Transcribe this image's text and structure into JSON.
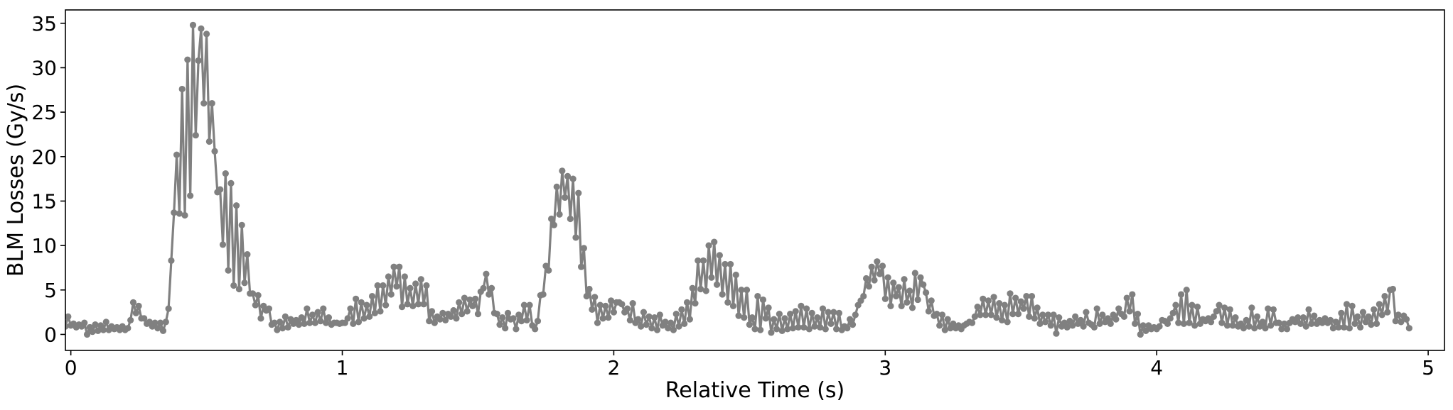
{
  "chart_data": {
    "type": "line",
    "title": "",
    "xlabel": "Relative Time (s)",
    "ylabel": "BLM Losses (Gy/s)",
    "xlim": [
      -0.02,
      5.06
    ],
    "ylim": [
      -1.8,
      36.5
    ],
    "x_ticks": [
      0,
      1,
      2,
      3,
      4,
      5
    ],
    "y_ticks": [
      0,
      5,
      10,
      15,
      20,
      25,
      30,
      35
    ],
    "grid": false,
    "legend": "none",
    "series": [
      {
        "color": "#808080",
        "marker": "circle",
        "x_start": -0.02,
        "x_step": 0.01,
        "y": [
          0.9,
          2.0,
          1.0,
          1.2,
          0.8,
          1.1,
          0.9,
          1.3,
          0.0,
          0.8,
          0.3,
          1.1,
          0.4,
          1.0,
          0.5,
          1.4,
          0.5,
          0.9,
          0.6,
          0.8,
          0.5,
          0.9,
          0.5,
          0.7,
          1.6,
          3.6,
          2.4,
          3.2,
          1.8,
          1.8,
          1.2,
          1.4,
          0.9,
          1.3,
          0.7,
          1.3,
          0.4,
          1.4,
          2.9,
          8.3,
          13.7,
          20.2,
          13.6,
          27.6,
          13.4,
          30.9,
          15.6,
          34.8,
          22.4,
          30.8,
          34.4,
          26.0,
          33.8,
          21.7,
          26.0,
          20.6,
          16.0,
          16.3,
          10.1,
          18.1,
          7.2,
          17.0,
          5.5,
          14.5,
          5.1,
          12.3,
          5.8,
          9.0,
          4.6,
          4.6,
          3.3,
          4.4,
          1.8,
          3.2,
          2.7,
          2.9,
          1.1,
          1.3,
          0.5,
          1.4,
          0.7,
          2.0,
          0.8,
          1.7,
          1.2,
          1.6,
          1.1,
          1.9,
          1.2,
          2.9,
          1.3,
          2.2,
          1.3,
          2.5,
          1.5,
          2.9,
          1.3,
          1.9,
          1.1,
          1.3,
          1.3,
          1.2,
          1.3,
          1.3,
          1.8,
          2.9,
          1.2,
          4.0,
          1.4,
          3.6,
          1.8,
          3.3,
          2.0,
          4.3,
          2.4,
          5.5,
          2.6,
          5.5,
          3.3,
          6.5,
          4.5,
          7.6,
          5.4,
          7.6,
          3.1,
          6.5,
          3.4,
          5.2,
          3.2,
          5.7,
          3.4,
          6.2,
          3.4,
          5.5,
          1.5,
          2.6,
          1.3,
          2.0,
          1.7,
          2.4,
          1.6,
          2.3,
          2.0,
          2.7,
          1.8,
          3.6,
          2.3,
          4.1,
          2.6,
          3.9,
          3.2,
          4.0,
          2.3,
          4.8,
          5.2,
          6.8,
          4.5,
          5.2,
          2.4,
          2.3,
          1.1,
          1.9,
          0.7,
          2.4,
          1.7,
          1.8,
          0.6,
          2.2,
          1.5,
          3.3,
          1.6,
          3.3,
          1.0,
          0.6,
          1.5,
          4.4,
          4.5,
          7.7,
          7.2,
          13.0,
          12.3,
          16.6,
          13.5,
          18.4,
          15.4,
          17.8,
          13.0,
          17.5,
          10.9,
          15.9,
          7.6,
          9.7,
          4.3,
          5.1,
          2.8,
          4.2,
          1.3,
          3.3,
          1.8,
          3.2,
          1.9,
          3.8,
          2.5,
          3.6,
          3.6,
          3.4,
          2.5,
          2.9,
          1.6,
          3.5,
          1.3,
          1.7,
          0.9,
          2.5,
          1.1,
          2.0,
          0.7,
          1.9,
          0.5,
          2.2,
          1.0,
          1.4,
          0.7,
          1.3,
          0.5,
          2.3,
          0.9,
          2.8,
          1.2,
          3.6,
          1.7,
          5.2,
          3.5,
          8.3,
          5.1,
          8.3,
          4.9,
          10.0,
          6.4,
          10.4,
          5.6,
          8.9,
          4.5,
          7.9,
          3.6,
          7.9,
          3.2,
          6.7,
          2.1,
          5.0,
          1.9,
          5.0,
          1.1,
          1.9,
          0.6,
          4.3,
          0.5,
          3.9,
          1.8,
          3.0,
          0.2,
          1.7,
          0.6,
          2.3,
          0.4,
          1.8,
          0.6,
          2.3,
          0.7,
          2.6,
          0.8,
          3.2,
          0.8,
          2.9,
          0.6,
          2.4,
          0.9,
          1.9,
          0.8,
          2.9,
          0.6,
          2.5,
          1.2,
          2.5,
          0.6,
          2.4,
          0.5,
          0.9,
          0.7,
          1.7,
          1.1,
          2.2,
          3.3,
          3.8,
          4.3,
          6.3,
          5.4,
          7.6,
          6.1,
          8.2,
          6.8,
          7.7,
          4.0,
          6.4,
          3.2,
          5.8,
          4.3,
          5.3,
          3.2,
          6.2,
          3.6,
          4.9,
          3.0,
          6.9,
          3.9,
          6.4,
          5.6,
          4.7,
          2.6,
          3.8,
          2.1,
          2.3,
          1.0,
          2.2,
          0.5,
          1.7,
          0.7,
          1.2,
          0.7,
          1.0,
          0.6,
          1.0,
          1.2,
          1.4,
          1.3,
          2.0,
          3.1,
          2.2,
          4.0,
          2.2,
          3.8,
          2.2,
          4.2,
          1.9,
          3.5,
          1.6,
          3.3,
          1.4,
          4.6,
          2.3,
          4.1,
          2.3,
          3.7,
          2.9,
          4.3,
          2.0,
          4.3,
          1.8,
          3.0,
          1.2,
          2.2,
          1.4,
          2.2,
          1.0,
          2.2,
          0.1,
          1.9,
          0.9,
          1.3,
          0.8,
          1.5,
          1.0,
          2.0,
          1.2,
          1.6,
          0.9,
          2.5,
          1.3,
          1.1,
          0.8,
          2.9,
          1.2,
          2.2,
          1.4,
          1.8,
          1.2,
          2.2,
          1.7,
          2.9,
          2.3,
          2.0,
          4.1,
          2.6,
          4.5,
          1.2,
          2.3,
          0.0,
          1.0,
          0.4,
          1.0,
          0.6,
          0.8,
          0.6,
          0.9,
          1.6,
          1.5,
          1.2,
          1.8,
          2.4,
          3.3,
          1.3,
          4.5,
          1.2,
          5.0,
          1.3,
          3.3,
          1.0,
          3.1,
          1.2,
          1.7,
          1.5,
          1.8,
          1.4,
          2.0,
          2.6,
          3.3,
          1.3,
          3.0,
          1.0,
          2.8,
          1.0,
          1.9,
          0.9,
          1.2,
          0.7,
          1.6,
          0.9,
          3.0,
          0.7,
          2.0,
          0.9,
          1.4,
          0.7,
          2.9,
          1.0,
          2.8,
          1.3,
          1.3,
          0.6,
          1.2,
          0.6,
          1.3,
          1.7,
          1.4,
          1.9,
          1.2,
          1.9,
          0.9,
          2.8,
          1.2,
          2.1,
          1.2,
          1.6,
          1.3,
          1.8,
          1.3,
          1.6,
          0.7,
          1.4,
          0.8,
          2.4,
          0.8,
          3.4,
          0.7,
          3.2,
          1.2,
          2.0,
          0.8,
          2.5,
          1.4,
          2.0,
          1.1,
          2.8,
          1.2,
          3.4,
          2.2,
          4.3,
          2.5,
          5.0,
          5.1,
          1.5,
          2.2,
          1.4,
          2.1,
          1.7,
          0.7
        ]
      }
    ]
  }
}
